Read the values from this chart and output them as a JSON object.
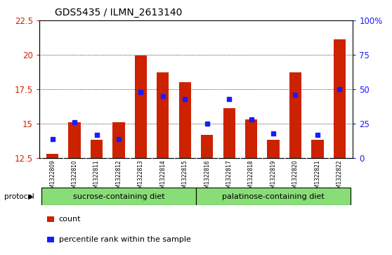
{
  "title": "GDS5435 / ILMN_2613140",
  "samples": [
    "GSM1322809",
    "GSM1322810",
    "GSM1322811",
    "GSM1322812",
    "GSM1322813",
    "GSM1322814",
    "GSM1322815",
    "GSM1322816",
    "GSM1322817",
    "GSM1322818",
    "GSM1322819",
    "GSM1322820",
    "GSM1322821",
    "GSM1322822"
  ],
  "count_values": [
    12.8,
    15.1,
    13.85,
    15.1,
    19.95,
    18.75,
    18.0,
    14.2,
    16.1,
    15.3,
    13.85,
    18.75,
    13.85,
    21.1
  ],
  "percentile_values": [
    14,
    26,
    17,
    14,
    48,
    45,
    43,
    25,
    43,
    28,
    18,
    46,
    17,
    50
  ],
  "ylim_left": [
    12.5,
    22.5
  ],
  "ylim_right": [
    0,
    100
  ],
  "yticks_left": [
    12.5,
    15.0,
    17.5,
    20.0,
    22.5
  ],
  "yticks_right": [
    0,
    25,
    50,
    75,
    100
  ],
  "ytick_labels_right": [
    "0",
    "25",
    "50",
    "75",
    "100%"
  ],
  "bar_color": "#cc2200",
  "dot_color": "#1a1aff",
  "sucrose_label": "sucrose-containing diet",
  "palatinose_label": "palatinose-containing diet",
  "group_color": "#88dd77",
  "xtick_bg_color": "#cccccc",
  "protocol_label": "protocol",
  "legend_count": "count",
  "legend_percentile": "percentile rank within the sample",
  "bar_width": 0.55,
  "title_fontsize": 10,
  "n_sucrose": 7,
  "n_palatinose": 7
}
